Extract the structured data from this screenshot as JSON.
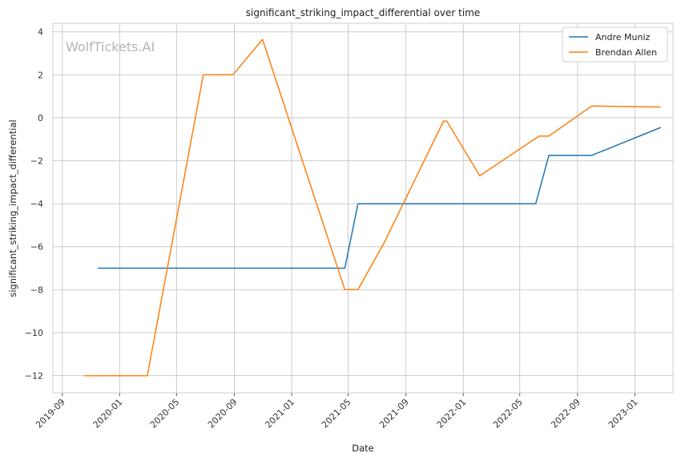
{
  "chart_data": {
    "type": "line",
    "title": "significant_striking_impact_differential over time",
    "xlabel": "Date",
    "ylabel": "significant_striking_impact_differential",
    "watermark": "WolfTickets.AI",
    "x_range": [
      "2019-08-12",
      "2023-03-23"
    ],
    "ylim": [
      -12.8,
      4.4
    ],
    "y_ticks": [
      4,
      2,
      0,
      -2,
      -4,
      -6,
      -8,
      -10,
      -12
    ],
    "y_tick_labels": [
      "4",
      "2",
      "0",
      "−2",
      "−4",
      "−6",
      "−8",
      "−10",
      "−12"
    ],
    "x_ticks": [
      "2019-09-01",
      "2020-01-01",
      "2020-05-01",
      "2020-09-01",
      "2021-01-01",
      "2021-05-01",
      "2021-09-01",
      "2022-01-01",
      "2022-05-01",
      "2022-09-01",
      "2023-01-01"
    ],
    "x_tick_labels": [
      "2019-09",
      "2020-01",
      "2020-05",
      "2020-09",
      "2021-01",
      "2021-05",
      "2021-09",
      "2022-01",
      "2022-05",
      "2022-09",
      "2023-01"
    ],
    "grid": true,
    "legend_position": "top-right",
    "series": [
      {
        "name": "Andre Muniz",
        "color": "#1f77b4",
        "points": [
          {
            "x": "2019-11-16",
            "y": -7.0
          },
          {
            "x": "2021-04-24",
            "y": -7.0
          },
          {
            "x": "2021-05-22",
            "y": -4.0
          },
          {
            "x": "2022-06-04",
            "y": -4.0
          },
          {
            "x": "2022-07-02",
            "y": -1.75
          },
          {
            "x": "2022-10-01",
            "y": -1.75
          },
          {
            "x": "2023-02-25",
            "y": -0.45
          }
        ]
      },
      {
        "name": "Brendan Allen",
        "color": "#ff7f0e",
        "points": [
          {
            "x": "2019-10-18",
            "y": -12.0
          },
          {
            "x": "2020-02-29",
            "y": -12.0
          },
          {
            "x": "2020-06-27",
            "y": 2.0
          },
          {
            "x": "2020-08-29",
            "y": 2.0
          },
          {
            "x": "2020-10-31",
            "y": 3.65
          },
          {
            "x": "2021-04-24",
            "y": -8.0
          },
          {
            "x": "2021-05-22",
            "y": -8.0
          },
          {
            "x": "2021-07-17",
            "y": -5.8
          },
          {
            "x": "2021-11-20",
            "y": -0.15
          },
          {
            "x": "2021-11-27",
            "y": -0.15
          },
          {
            "x": "2022-02-05",
            "y": -2.7
          },
          {
            "x": "2022-06-11",
            "y": -0.85
          },
          {
            "x": "2022-07-02",
            "y": -0.85
          },
          {
            "x": "2022-10-01",
            "y": 0.55
          },
          {
            "x": "2023-02-25",
            "y": 0.5
          }
        ]
      }
    ]
  }
}
